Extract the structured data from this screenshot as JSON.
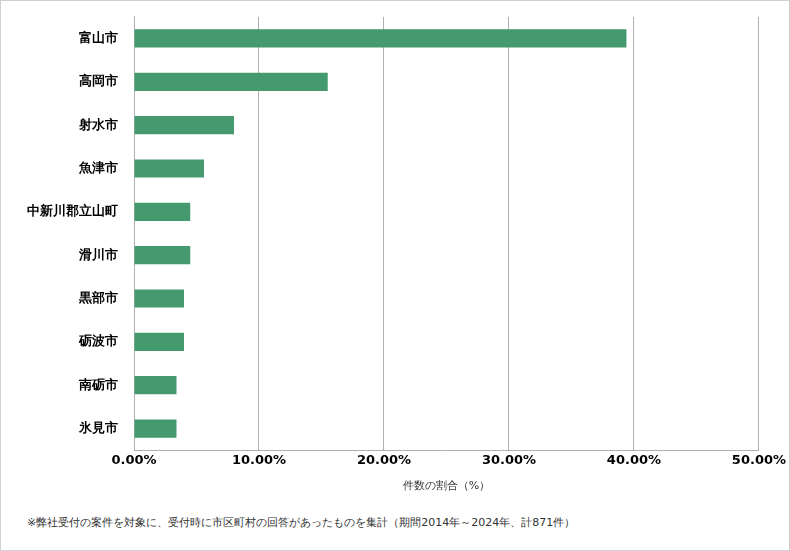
{
  "chart_data": {
    "type": "bar",
    "orientation": "horizontal",
    "categories": [
      "富山市",
      "高岡市",
      "射水市",
      "魚津市",
      "中新川郡立山町",
      "滑川市",
      "黒部市",
      "砺波市",
      "南砺市",
      "氷見市"
    ],
    "values": [
      39.4,
      15.5,
      8.0,
      5.6,
      4.5,
      4.5,
      4.0,
      4.0,
      3.4,
      3.4
    ],
    "color": "#449a6e",
    "x_label": "件数の割合（%）",
    "xlim": [
      0,
      50
    ],
    "xticks": [
      {
        "value": 0,
        "label": "0.00%"
      },
      {
        "value": 10,
        "label": "10.00%"
      },
      {
        "value": 20,
        "label": "20.00%"
      },
      {
        "value": 30,
        "label": "30.00%"
      },
      {
        "value": 40,
        "label": "40.00%"
      },
      {
        "value": 50,
        "label": "50.00%"
      }
    ],
    "grid": true,
    "annotations": [
      "※弊社受付の案件を対象に、受付時に市区町村の回答があったものを集計（期間2014年～2024年、計871件）"
    ]
  }
}
